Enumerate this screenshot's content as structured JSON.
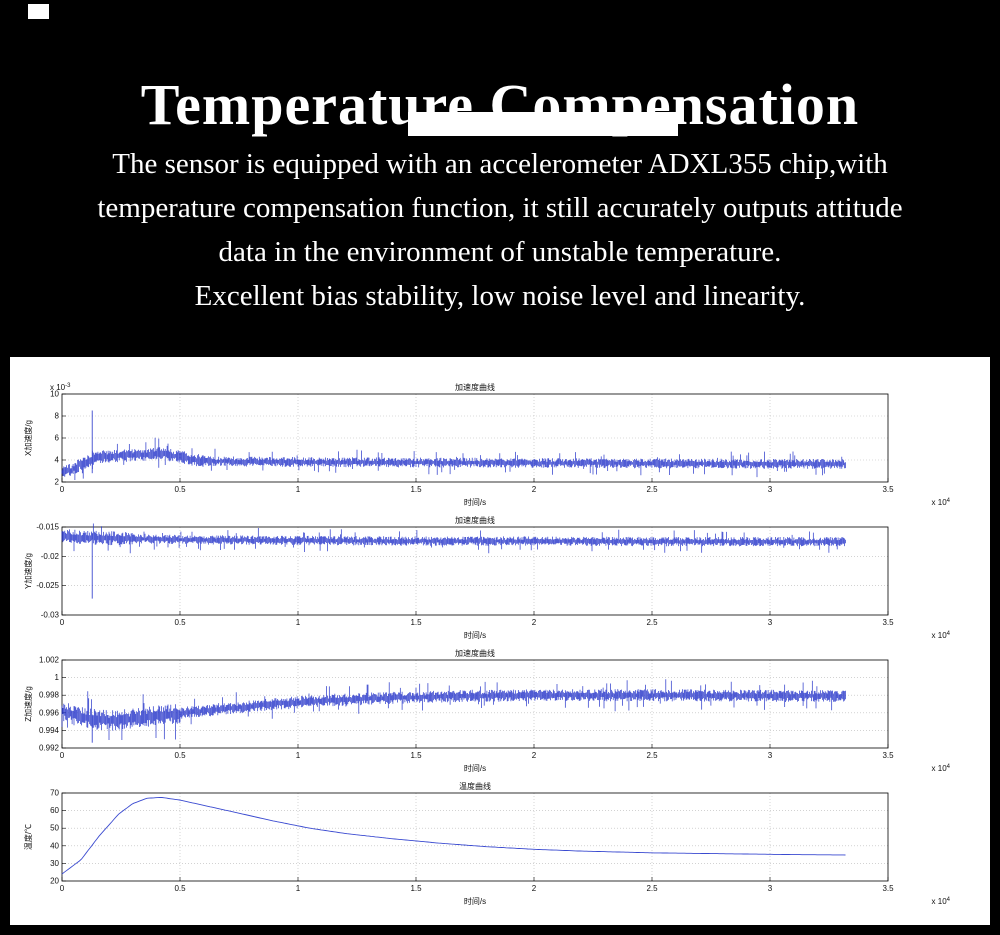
{
  "header": {
    "title": "Temperature Compensation"
  },
  "description": {
    "lines": [
      "The sensor is equipped with an accelerometer ADXL355 chip,with",
      "temperature compensation function, it still accurately outputs attitude",
      "data in the environment of unstable temperature.",
      "Excellent bias stability, low noise level and linearity."
    ]
  },
  "colors": {
    "background": "#000000",
    "text": "#ffffff",
    "panel": "#ffffff",
    "plot_line": "#2433c9",
    "grid": "#b8b8b8"
  },
  "chart_data": [
    {
      "type": "line",
      "style": "noisy",
      "seed": 7,
      "title": "加速度曲线",
      "xlabel": "时间/s",
      "ylabel": "X加速度/g",
      "y_scale_note": "x 10^-3",
      "x_scale_note": "x 10^4",
      "xlim": [
        0,
        3.5
      ],
      "ylim": [
        2,
        10
      ],
      "x_tick_values": [
        0,
        0.5,
        1,
        1.5,
        2,
        2.5,
        3,
        3.5
      ],
      "x_tick_labels": [
        "0",
        "0.5",
        "1",
        "1.5",
        "2",
        "2.5",
        "3",
        "3.5"
      ],
      "y_tick_values": [
        2,
        4,
        6,
        8,
        10
      ],
      "y_tick_labels": [
        "2",
        "4",
        "6",
        "8",
        "10"
      ],
      "x_end": 3.32,
      "trend": [
        [
          0,
          2.9
        ],
        [
          0.04,
          3.1
        ],
        [
          0.08,
          3.6
        ],
        [
          0.12,
          4.0
        ],
        [
          0.16,
          4.3
        ],
        [
          0.3,
          4.45
        ],
        [
          0.42,
          4.6
        ],
        [
          0.5,
          4.3
        ],
        [
          0.56,
          4.0
        ],
        [
          0.62,
          3.9
        ],
        [
          0.8,
          3.85
        ],
        [
          1.2,
          3.8
        ],
        [
          1.8,
          3.75
        ],
        [
          2.4,
          3.7
        ],
        [
          3.0,
          3.65
        ],
        [
          3.32,
          3.65
        ]
      ],
      "noise": 0.45,
      "boost_until": 0.6,
      "boost_factor": 1.3,
      "spikes": [
        [
          0.128,
          2.8,
          8.5
        ]
      ],
      "line_color": "#2433c9",
      "grid_color": "#b8b8b8"
    },
    {
      "type": "line",
      "style": "noisy",
      "seed": 11,
      "title": "加速度曲线",
      "xlabel": "时间/s",
      "ylabel": "Y加速度/g",
      "x_scale_note": "x 10^4",
      "xlim": [
        0,
        3.5
      ],
      "ylim": [
        -0.03,
        -0.015
      ],
      "x_tick_values": [
        0,
        0.5,
        1,
        1.5,
        2,
        2.5,
        3,
        3.5
      ],
      "x_tick_labels": [
        "0",
        "0.5",
        "1",
        "1.5",
        "2",
        "2.5",
        "3",
        "3.5"
      ],
      "y_tick_values": [
        -0.03,
        -0.025,
        -0.02,
        -0.015
      ],
      "y_tick_labels": [
        "-0.03",
        "-0.025",
        "-0.02",
        "-0.015"
      ],
      "x_end": 3.32,
      "trend": [
        [
          0,
          -0.0165
        ],
        [
          0.1,
          -0.0168
        ],
        [
          0.3,
          -0.017
        ],
        [
          0.6,
          -0.0172
        ],
        [
          1.0,
          -0.0173
        ],
        [
          1.5,
          -0.0174
        ],
        [
          2.0,
          -0.0174
        ],
        [
          2.6,
          -0.0175
        ],
        [
          3.32,
          -0.0175
        ]
      ],
      "noise": 0.0008,
      "boost_until": 0.3,
      "boost_factor": 1.5,
      "spikes": [
        [
          0.128,
          -0.0272,
          -0.016
        ]
      ],
      "line_color": "#2433c9",
      "grid_color": "#b8b8b8"
    },
    {
      "type": "line",
      "style": "noisy",
      "seed": 13,
      "title": "加速度曲线",
      "xlabel": "时间/s",
      "ylabel": "Z加速度/g",
      "x_scale_note": "x 10^4",
      "xlim": [
        0,
        3.5
      ],
      "ylim": [
        0.992,
        1.002
      ],
      "x_tick_values": [
        0,
        0.5,
        1,
        1.5,
        2,
        2.5,
        3,
        3.5
      ],
      "x_tick_labels": [
        "0",
        "0.5",
        "1",
        "1.5",
        "2",
        "2.5",
        "3",
        "3.5"
      ],
      "y_tick_values": [
        0.992,
        0.994,
        0.996,
        0.998,
        1,
        1.002
      ],
      "y_tick_labels": [
        "0.992",
        "0.994",
        "0.996",
        "0.998",
        "1",
        "1.002"
      ],
      "x_end": 3.32,
      "trend": [
        [
          0,
          0.9962
        ],
        [
          0.06,
          0.9957
        ],
        [
          0.12,
          0.9953
        ],
        [
          0.2,
          0.9951
        ],
        [
          0.3,
          0.9953
        ],
        [
          0.42,
          0.9957
        ],
        [
          0.55,
          0.9961
        ],
        [
          0.7,
          0.9965
        ],
        [
          0.9,
          0.997
        ],
        [
          1.1,
          0.9974
        ],
        [
          1.4,
          0.9977
        ],
        [
          1.7,
          0.9979
        ],
        [
          2.0,
          0.998
        ],
        [
          2.5,
          0.998
        ],
        [
          3.32,
          0.9979
        ]
      ],
      "noise": 0.0007,
      "boost_until": 0.5,
      "boost_factor": 1.7,
      "spikes": [
        [
          0.128,
          0.9926,
          0.9958
        ]
      ],
      "line_color": "#2433c9",
      "grid_color": "#b8b8b8"
    },
    {
      "type": "line",
      "style": "smooth",
      "seed": 17,
      "title": "温度曲线",
      "xlabel": "时间/s",
      "ylabel": "温度/℃",
      "x_scale_note": "x 10^4",
      "xlim": [
        0,
        3.5
      ],
      "ylim": [
        20,
        70
      ],
      "x_tick_values": [
        0,
        0.5,
        1,
        1.5,
        2,
        2.5,
        3,
        3.5
      ],
      "x_tick_labels": [
        "0",
        "0.5",
        "1",
        "1.5",
        "2",
        "2.5",
        "3",
        "3.5"
      ],
      "y_tick_values": [
        20,
        30,
        40,
        50,
        60,
        70
      ],
      "y_tick_labels": [
        "20",
        "30",
        "40",
        "50",
        "60",
        "70"
      ],
      "x_end": 3.32,
      "trend": [
        [
          0,
          24
        ],
        [
          0.08,
          32
        ],
        [
          0.16,
          46
        ],
        [
          0.24,
          58
        ],
        [
          0.3,
          64
        ],
        [
          0.36,
          67
        ],
        [
          0.42,
          67.5
        ],
        [
          0.5,
          66
        ],
        [
          0.6,
          63
        ],
        [
          0.75,
          58.5
        ],
        [
          0.9,
          54
        ],
        [
          1.05,
          50
        ],
        [
          1.2,
          47
        ],
        [
          1.4,
          44
        ],
        [
          1.6,
          41.5
        ],
        [
          1.8,
          39.5
        ],
        [
          2.0,
          38
        ],
        [
          2.2,
          37
        ],
        [
          2.5,
          36
        ],
        [
          2.8,
          35.5
        ],
        [
          3.1,
          35
        ],
        [
          3.32,
          34.8
        ]
      ],
      "noise": 0,
      "spikes": [],
      "line_color": "#3a4ad0",
      "grid_color": "#b8b8b8"
    }
  ]
}
